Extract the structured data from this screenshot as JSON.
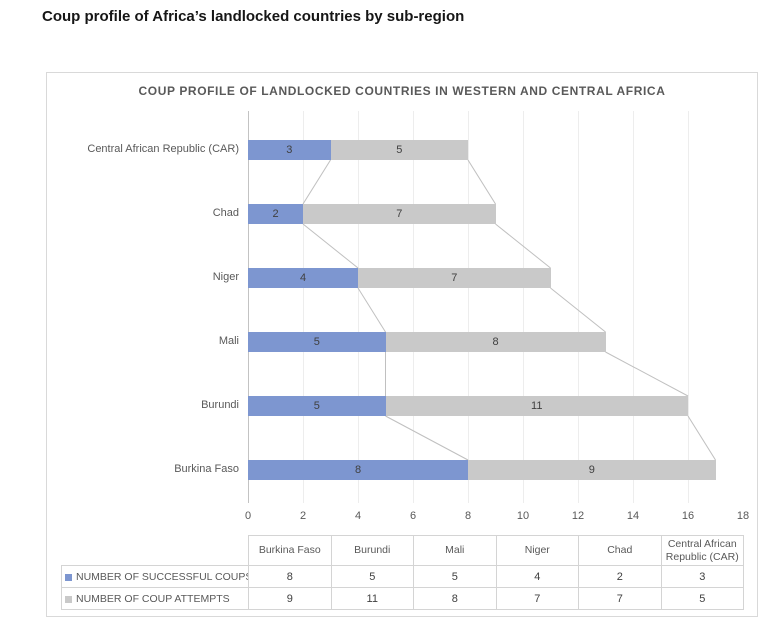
{
  "page_title": "Coup profile of Africa’s landlocked countries by sub-region",
  "colors": {
    "successful_coups": "#7d96d0",
    "coup_attempts": "#c9c9c9",
    "gridline": "#ededed",
    "axis_line": "#c3c3c3",
    "series_line": "#c0c0c0",
    "bar_label_text": "#404040",
    "axis_text": "#595959",
    "frame_border": "#d9d9d9"
  },
  "chart_data": {
    "type": "bar",
    "subtype": "horizontal-stacked",
    "title": "COUP PROFILE OF LANDLOCKED COUNTRIES IN WESTERN AND CENTRAL AFRICA",
    "categories_top_to_bottom": [
      "Central African Republic (CAR)",
      "Chad",
      "Niger",
      "Mali",
      "Burundi",
      "Burkina Faso"
    ],
    "series": [
      {
        "name": "NUMBER OF SUCCESSFUL COUPS",
        "color": "#7d96d0",
        "values_top_to_bottom": [
          3,
          2,
          4,
          5,
          5,
          8
        ]
      },
      {
        "name": "NUMBER OF COUP ATTEMPTS",
        "color": "#c9c9c9",
        "values_top_to_bottom": [
          5,
          7,
          7,
          8,
          11,
          9
        ]
      }
    ],
    "xlim": [
      0,
      18
    ],
    "x_ticks": [
      0,
      2,
      4,
      6,
      8,
      10,
      12,
      14,
      16,
      18
    ],
    "grid": true,
    "series_lines": true,
    "legend_position": "data-table"
  },
  "data_table": {
    "columns": [
      "Burkina Faso",
      "Burundi",
      "Mali",
      "Niger",
      "Chad",
      "Central African Republic (CAR)"
    ],
    "rows": [
      {
        "label": "NUMBER OF SUCCESSFUL COUPS",
        "key_color": "#7d96d0",
        "values": [
          8,
          5,
          5,
          4,
          2,
          3
        ]
      },
      {
        "label": "NUMBER OF COUP ATTEMPTS",
        "key_color": "#c9c9c9",
        "values": [
          9,
          11,
          8,
          7,
          7,
          5
        ]
      }
    ]
  }
}
